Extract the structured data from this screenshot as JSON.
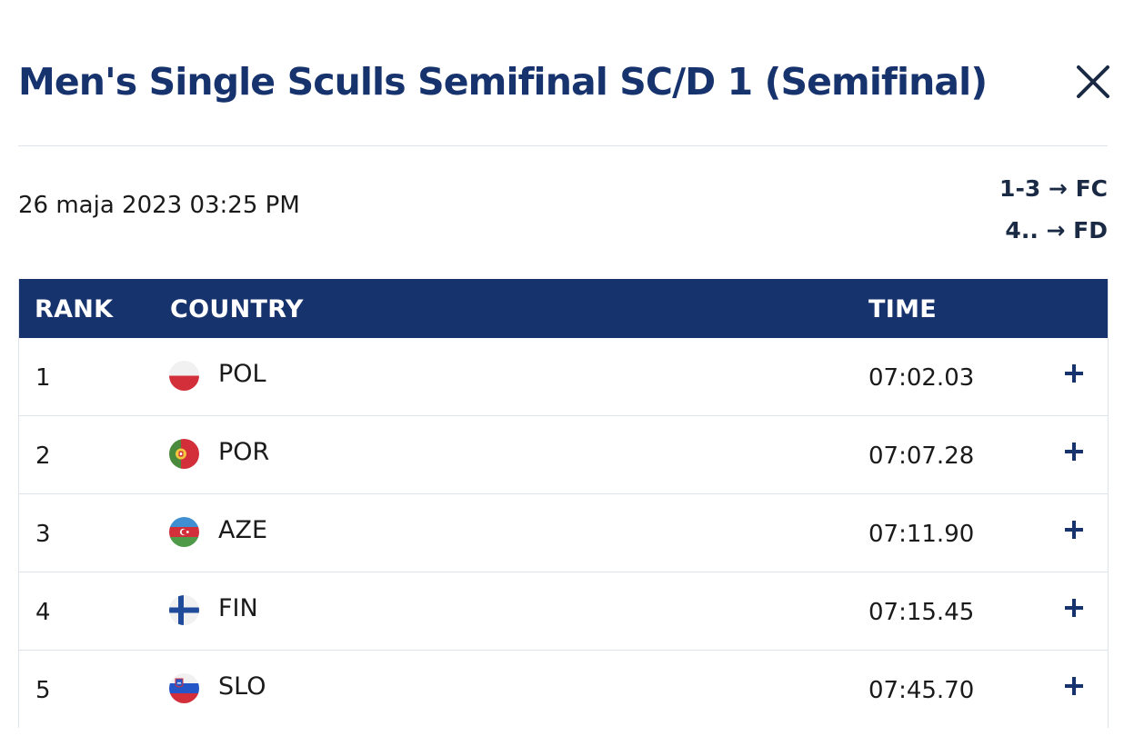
{
  "header": {
    "title": "Men's Single Sculls Semifinal SC/D 1 (Semifinal)",
    "close_icon": "close-icon"
  },
  "race": {
    "date": "26 maja 2023 03:25 PM",
    "progression": [
      "1-3 → FC",
      "4.. → FD"
    ]
  },
  "table": {
    "headers": {
      "rank": "RANK",
      "country": "COUNTRY",
      "time": "TIME"
    },
    "rows": [
      {
        "rank": "1",
        "country": "POL",
        "time": "07:02.03",
        "flag_icon": "poland-flag-icon",
        "expand_icon": "plus-icon"
      },
      {
        "rank": "2",
        "country": "POR",
        "time": "07:07.28",
        "flag_icon": "portugal-flag-icon",
        "expand_icon": "plus-icon"
      },
      {
        "rank": "3",
        "country": "AZE",
        "time": "07:11.90",
        "flag_icon": "azerbaijan-flag-icon",
        "expand_icon": "plus-icon"
      },
      {
        "rank": "4",
        "country": "FIN",
        "time": "07:15.45",
        "flag_icon": "finland-flag-icon",
        "expand_icon": "plus-icon"
      },
      {
        "rank": "5",
        "country": "SLO",
        "time": "07:45.70",
        "flag_icon": "slovenia-flag-icon",
        "expand_icon": "plus-icon"
      }
    ]
  },
  "colors": {
    "brand_navy": "#17336e",
    "divider": "#dfe4ec",
    "text": "#1a1a1a"
  }
}
